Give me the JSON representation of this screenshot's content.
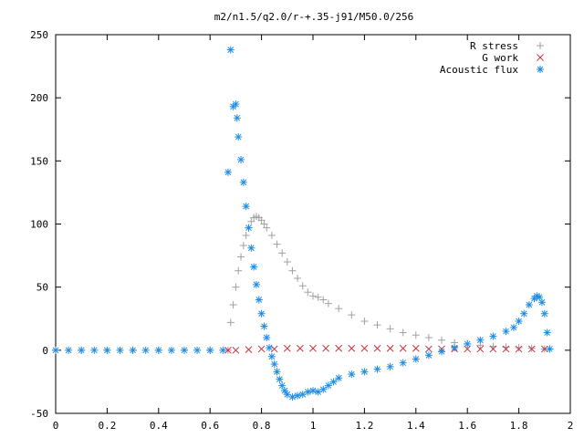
{
  "chart_data": {
    "type": "scatter",
    "title": "m2/n1.5/q2.0/r-+.35-j91/M50.0/256",
    "xlabel": "",
    "ylabel": "",
    "xlim": [
      0,
      2
    ],
    "ylim": [
      -50,
      250
    ],
    "x_ticks": [
      "0",
      "0.2",
      "0.4",
      "0.6",
      "0.8",
      "1",
      "1.2",
      "1.4",
      "1.6",
      "1.8",
      "2"
    ],
    "y_ticks": [
      "-50",
      "0",
      "50",
      "100",
      "150",
      "200",
      "250"
    ],
    "grid": false,
    "legend_position": "top-right",
    "series": [
      {
        "name": "R stress",
        "marker": "plus",
        "color": "#a0a0a0",
        "points": [
          [
            0.0,
            0
          ],
          [
            0.1,
            0
          ],
          [
            0.2,
            0
          ],
          [
            0.3,
            0
          ],
          [
            0.4,
            0
          ],
          [
            0.5,
            0
          ],
          [
            0.6,
            0
          ],
          [
            0.67,
            0
          ],
          [
            0.68,
            22
          ],
          [
            0.69,
            36
          ],
          [
            0.7,
            50
          ],
          [
            0.71,
            63
          ],
          [
            0.72,
            74
          ],
          [
            0.73,
            83
          ],
          [
            0.74,
            91
          ],
          [
            0.75,
            97
          ],
          [
            0.76,
            102
          ],
          [
            0.77,
            105
          ],
          [
            0.78,
            106
          ],
          [
            0.79,
            105
          ],
          [
            0.8,
            103
          ],
          [
            0.81,
            100
          ],
          [
            0.82,
            97
          ],
          [
            0.84,
            91
          ],
          [
            0.86,
            84
          ],
          [
            0.88,
            77
          ],
          [
            0.9,
            70
          ],
          [
            0.92,
            63
          ],
          [
            0.94,
            57
          ],
          [
            0.96,
            51
          ],
          [
            0.98,
            46
          ],
          [
            1.0,
            43
          ],
          [
            1.02,
            42
          ],
          [
            1.04,
            40
          ],
          [
            1.06,
            37
          ],
          [
            1.1,
            33
          ],
          [
            1.15,
            28
          ],
          [
            1.2,
            23
          ],
          [
            1.25,
            20
          ],
          [
            1.3,
            17
          ],
          [
            1.35,
            14
          ],
          [
            1.4,
            12
          ],
          [
            1.45,
            10
          ],
          [
            1.5,
            8
          ],
          [
            1.55,
            6
          ],
          [
            1.6,
            5
          ],
          [
            1.65,
            4
          ],
          [
            1.7,
            3
          ],
          [
            1.75,
            2.5
          ],
          [
            1.8,
            2
          ],
          [
            1.85,
            1.5
          ],
          [
            1.9,
            1
          ],
          [
            1.92,
            1
          ]
        ]
      },
      {
        "name": "G work",
        "marker": "cross",
        "color": "#c8323c",
        "points": [
          [
            0.67,
            0
          ],
          [
            0.7,
            0
          ],
          [
            0.75,
            0.5
          ],
          [
            0.8,
            1
          ],
          [
            0.85,
            1
          ],
          [
            0.9,
            1.5
          ],
          [
            0.95,
            1.5
          ],
          [
            1.0,
            1.5
          ],
          [
            1.05,
            1.5
          ],
          [
            1.1,
            1.5
          ],
          [
            1.15,
            1.5
          ],
          [
            1.2,
            1.5
          ],
          [
            1.25,
            1.5
          ],
          [
            1.3,
            1.5
          ],
          [
            1.35,
            1.5
          ],
          [
            1.4,
            1.5
          ],
          [
            1.45,
            1
          ],
          [
            1.5,
            1
          ],
          [
            1.55,
            1
          ],
          [
            1.6,
            1
          ],
          [
            1.65,
            1
          ],
          [
            1.7,
            1
          ],
          [
            1.75,
            1
          ],
          [
            1.8,
            1
          ],
          [
            1.85,
            1
          ],
          [
            1.9,
            1
          ]
        ]
      },
      {
        "name": "Acoustic flux",
        "marker": "star",
        "color": "#1e8ce6",
        "points": [
          [
            0.0,
            0
          ],
          [
            0.05,
            0
          ],
          [
            0.1,
            0
          ],
          [
            0.15,
            0
          ],
          [
            0.2,
            0
          ],
          [
            0.25,
            0
          ],
          [
            0.3,
            0
          ],
          [
            0.35,
            0
          ],
          [
            0.4,
            0
          ],
          [
            0.45,
            0
          ],
          [
            0.5,
            0
          ],
          [
            0.55,
            0
          ],
          [
            0.6,
            0
          ],
          [
            0.65,
            0
          ],
          [
            0.67,
            141
          ],
          [
            0.68,
            238
          ],
          [
            0.69,
            193
          ],
          [
            0.7,
            195
          ],
          [
            0.705,
            184
          ],
          [
            0.71,
            169
          ],
          [
            0.72,
            151
          ],
          [
            0.73,
            133
          ],
          [
            0.74,
            114
          ],
          [
            0.75,
            97
          ],
          [
            0.76,
            81
          ],
          [
            0.77,
            66
          ],
          [
            0.78,
            52
          ],
          [
            0.79,
            40
          ],
          [
            0.8,
            29
          ],
          [
            0.81,
            19
          ],
          [
            0.82,
            10
          ],
          [
            0.83,
            2
          ],
          [
            0.84,
            -5
          ],
          [
            0.85,
            -11
          ],
          [
            0.86,
            -17
          ],
          [
            0.87,
            -23
          ],
          [
            0.88,
            -28
          ],
          [
            0.89,
            -32
          ],
          [
            0.9,
            -35
          ],
          [
            0.92,
            -37
          ],
          [
            0.94,
            -36
          ],
          [
            0.96,
            -35
          ],
          [
            0.98,
            -33
          ],
          [
            1.0,
            -32
          ],
          [
            1.02,
            -33
          ],
          [
            1.04,
            -31
          ],
          [
            1.06,
            -28
          ],
          [
            1.08,
            -25
          ],
          [
            1.1,
            -22
          ],
          [
            1.15,
            -19
          ],
          [
            1.2,
            -17
          ],
          [
            1.25,
            -15
          ],
          [
            1.3,
            -13
          ],
          [
            1.35,
            -10
          ],
          [
            1.4,
            -7
          ],
          [
            1.45,
            -4
          ],
          [
            1.5,
            -1
          ],
          [
            1.55,
            2
          ],
          [
            1.6,
            5
          ],
          [
            1.65,
            8
          ],
          [
            1.7,
            11
          ],
          [
            1.75,
            15
          ],
          [
            1.78,
            18
          ],
          [
            1.8,
            23
          ],
          [
            1.82,
            29
          ],
          [
            1.84,
            36
          ],
          [
            1.86,
            41
          ],
          [
            1.87,
            43
          ],
          [
            1.88,
            42
          ],
          [
            1.89,
            38
          ],
          [
            1.9,
            29
          ],
          [
            1.91,
            14
          ],
          [
            1.92,
            1
          ]
        ]
      }
    ]
  }
}
